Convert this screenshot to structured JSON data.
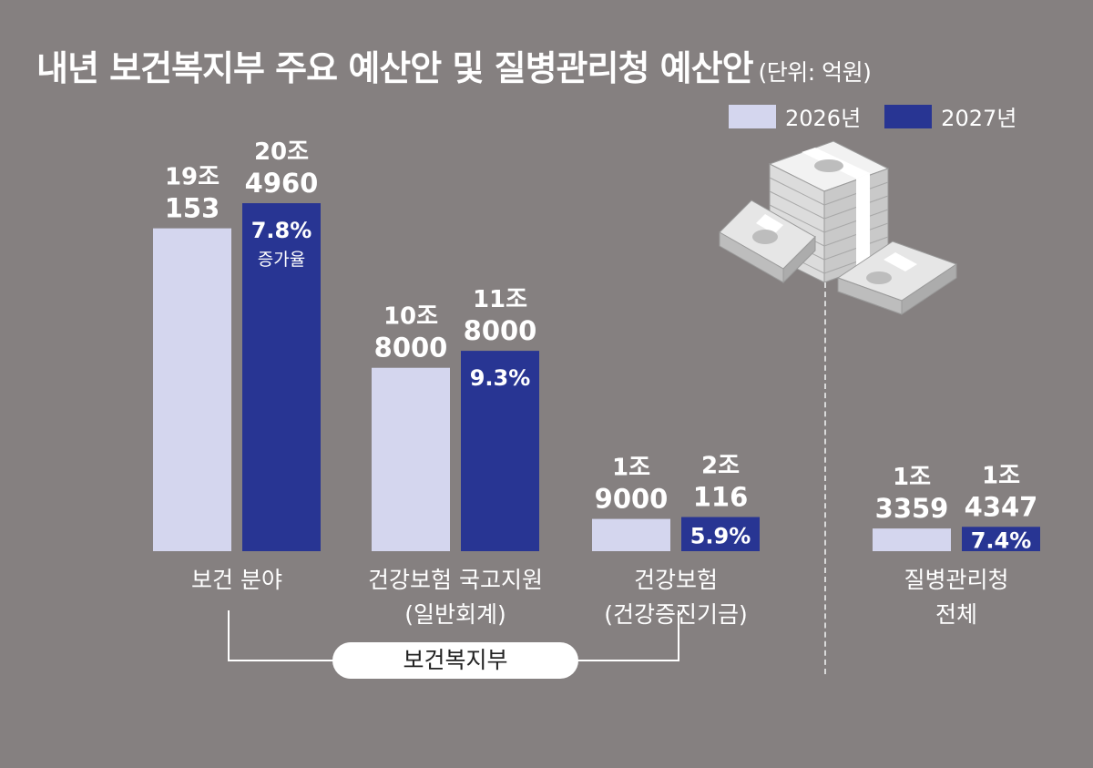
{
  "title": "내년 보건복지부 주요 예산안 및 질병관리청 예산안",
  "unit": "(단위: 억원)",
  "legend": [
    {
      "label": "2026년",
      "color": "#d4d6ee"
    },
    {
      "label": "2027년",
      "color": "#283593"
    }
  ],
  "bracket_label": "보건복지부",
  "chart_data": {
    "type": "bar",
    "unit": "억원",
    "categories": [
      [
        "보건 분야"
      ],
      [
        "건강보험 국고지원",
        "(일반회계)"
      ],
      [
        "건강보험",
        "(건강증진기금)"
      ],
      [
        "질병관리청",
        "전체"
      ]
    ],
    "series": [
      {
        "name": "2026년",
        "values": [
          190153,
          108000,
          19000,
          13359
        ],
        "labels": [
          [
            "19조",
            "153"
          ],
          [
            "10조",
            "8000"
          ],
          [
            "1조",
            "9000"
          ],
          [
            "1조",
            "3359"
          ]
        ]
      },
      {
        "name": "2027년",
        "values": [
          204960,
          118000,
          20116,
          14347
        ],
        "labels": [
          [
            "20조",
            "4960"
          ],
          [
            "11조",
            "8000"
          ],
          [
            "2조",
            "116"
          ],
          [
            "1조",
            "4347"
          ]
        ]
      }
    ],
    "growth_rates": [
      "7.8%",
      "9.3%",
      "5.9%",
      "7.4%"
    ],
    "growth_caption": "증가율",
    "ylim": [
      0,
      220000
    ],
    "grid": false
  }
}
